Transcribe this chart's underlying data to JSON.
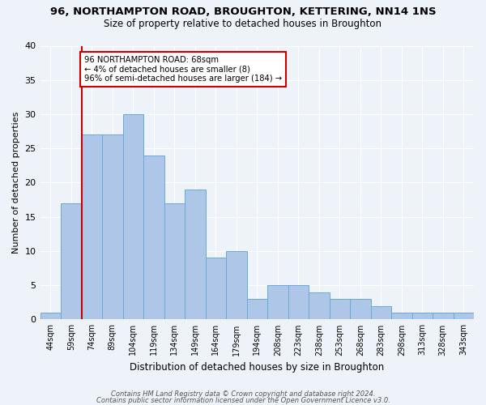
{
  "title_line1": "96, NORTHAMPTON ROAD, BROUGHTON, KETTERING, NN14 1NS",
  "title_line2": "Size of property relative to detached houses in Broughton",
  "xlabel": "Distribution of detached houses by size in Broughton",
  "ylabel": "Number of detached properties",
  "categories": [
    "44sqm",
    "59sqm",
    "74sqm",
    "89sqm",
    "104sqm",
    "119sqm",
    "134sqm",
    "149sqm",
    "164sqm",
    "179sqm",
    "194sqm",
    "208sqm",
    "223sqm",
    "238sqm",
    "253sqm",
    "268sqm",
    "283sqm",
    "298sqm",
    "313sqm",
    "328sqm",
    "343sqm"
  ],
  "values": [
    1,
    17,
    27,
    27,
    30,
    24,
    17,
    19,
    9,
    10,
    3,
    5,
    5,
    4,
    3,
    3,
    2,
    1,
    1,
    1,
    1
  ],
  "bar_color": "#aec6e8",
  "bar_edgecolor": "#6aaad4",
  "bar_linewidth": 0.7,
  "vline_x_index": 1.5,
  "vline_color": "#cc0000",
  "annotation_text": "96 NORTHAMPTON ROAD: 68sqm\n← 4% of detached houses are smaller (8)\n96% of semi-detached houses are larger (184) →",
  "annotation_box_edgecolor": "#cc0000",
  "annotation_box_facecolor": "#ffffff",
  "ylim": [
    0,
    40
  ],
  "yticks": [
    0,
    5,
    10,
    15,
    20,
    25,
    30,
    35,
    40
  ],
  "bg_color": "#eef2f9",
  "plot_bg_color": "#eef2f9",
  "grid_color": "#ffffff",
  "footer_line1": "Contains HM Land Registry data © Crown copyright and database right 2024.",
  "footer_line2": "Contains public sector information licensed under the Open Government Licence v3.0."
}
